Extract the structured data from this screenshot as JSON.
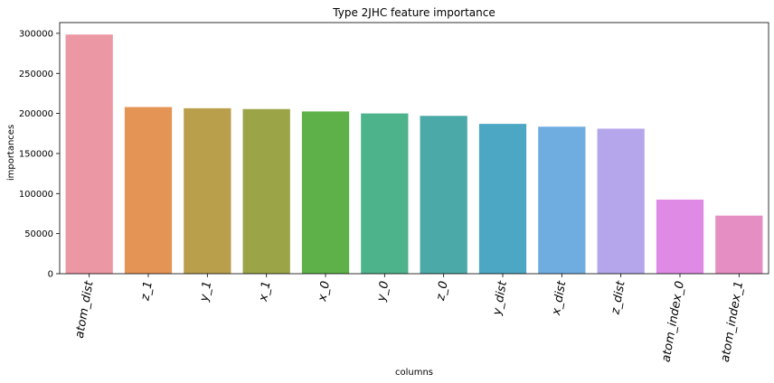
{
  "chart_data": {
    "type": "bar",
    "title": "Type 2JHC feature importance",
    "xlabel": "columns",
    "ylabel": "importances",
    "categories": [
      "atom_dist",
      "z_1",
      "y_1",
      "x_1",
      "x_0",
      "y_0",
      "z_0",
      "y_dist",
      "x_dist",
      "z_dist",
      "atom_index_0",
      "atom_index_1"
    ],
    "values": [
      298500,
      208000,
      206500,
      205500,
      202500,
      200000,
      197000,
      187000,
      183500,
      181000,
      92500,
      72500
    ],
    "colors": [
      "#ec97a4",
      "#e49556",
      "#b99f4b",
      "#9ba547",
      "#5eb048",
      "#4cb38b",
      "#4ba9a7",
      "#4ba7c4",
      "#6fade1",
      "#b5a6ec",
      "#df8ae5",
      "#e58ec3"
    ],
    "yticks": [
      0,
      50000,
      100000,
      150000,
      200000,
      250000,
      300000
    ],
    "ylim": [
      0,
      313425
    ],
    "grid": false,
    "legend": "none"
  }
}
